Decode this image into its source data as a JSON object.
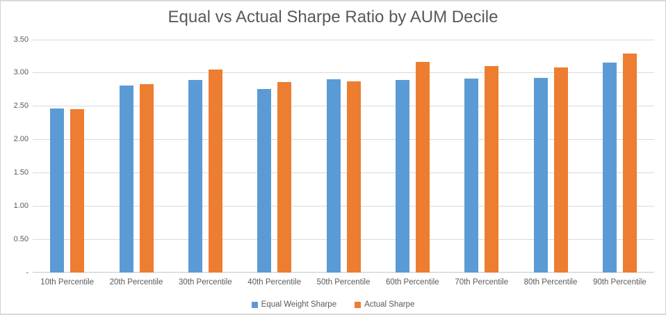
{
  "chart_data": {
    "type": "bar",
    "title": "Equal vs Actual Sharpe Ratio by AUM Decile",
    "categories": [
      "10th Percentile",
      "20th Percentile",
      "30th Percentile",
      "40th Percentile",
      "50th Percentile",
      "60th Percentile",
      "70th Percentile",
      "80th Percentile",
      "90th Percentile"
    ],
    "series": [
      {
        "name": "Equal Weight Sharpe",
        "color": "#5B9BD5",
        "values": [
          2.47,
          2.81,
          2.89,
          2.76,
          2.9,
          2.89,
          2.91,
          2.93,
          3.16
        ]
      },
      {
        "name": "Actual Sharpe",
        "color": "#ED7D31",
        "values": [
          2.46,
          2.83,
          3.05,
          2.86,
          2.87,
          3.17,
          3.1,
          3.08,
          3.29
        ]
      }
    ],
    "ylim": [
      0,
      3.5
    ],
    "yticks": [
      {
        "value": 3.5,
        "label": "3.50"
      },
      {
        "value": 3.0,
        "label": "3.00"
      },
      {
        "value": 2.5,
        "label": "2.50"
      },
      {
        "value": 2.0,
        "label": "2.00"
      },
      {
        "value": 1.5,
        "label": "1.50"
      },
      {
        "value": 1.0,
        "label": "1.00"
      },
      {
        "value": 0.5,
        "label": "0.50"
      },
      {
        "value": 0.0,
        "label": "-"
      }
    ],
    "grid": true,
    "legend_position": "bottom",
    "xlabel": "",
    "ylabel": "",
    "gridline_color": "#D9D9D9",
    "axis_color": "#C6C6C6",
    "text_color": "#595959"
  }
}
